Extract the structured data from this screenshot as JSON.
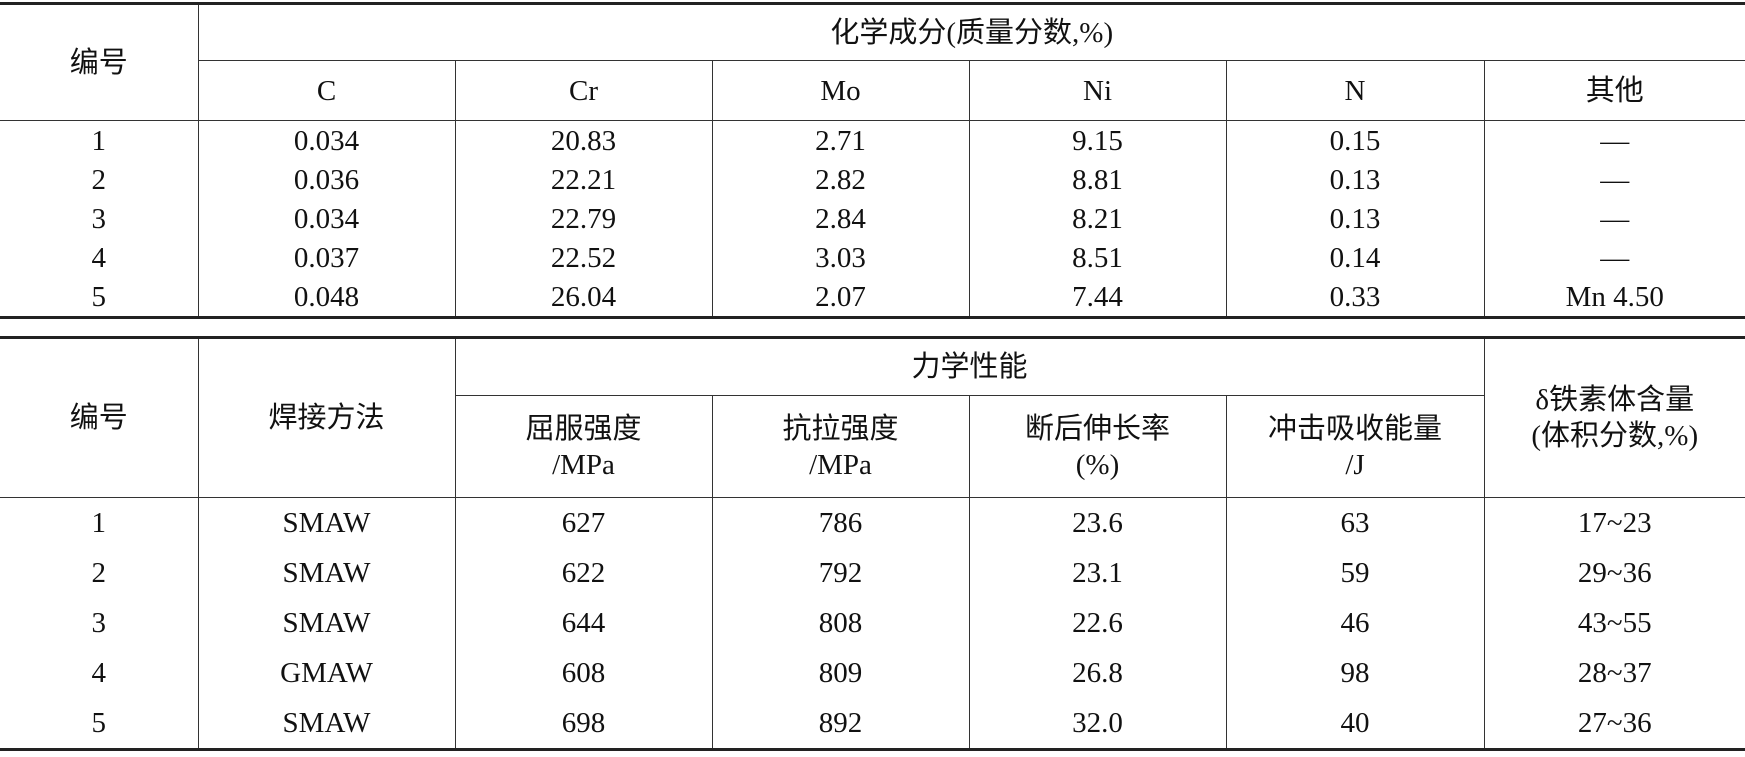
{
  "chemical_table": {
    "id_header": "编号",
    "group_header": "化学成分(质量分数,%)",
    "columns": [
      "C",
      "Cr",
      "Mo",
      "Ni",
      "N",
      "其他"
    ],
    "rows": [
      [
        "1",
        "0.034",
        "20.83",
        "2.71",
        "9.15",
        "0.15",
        "—"
      ],
      [
        "2",
        "0.036",
        "22.21",
        "2.82",
        "8.81",
        "0.13",
        "—"
      ],
      [
        "3",
        "0.034",
        "22.79",
        "2.84",
        "8.21",
        "0.13",
        "—"
      ],
      [
        "4",
        "0.037",
        "22.52",
        "3.03",
        "8.51",
        "0.14",
        "—"
      ],
      [
        "5",
        "0.048",
        "26.04",
        "2.07",
        "7.44",
        "0.33",
        "Mn 4.50"
      ]
    ]
  },
  "mechanical_table": {
    "id_header": "编号",
    "method_header": "焊接方法",
    "group_header": "力学性能",
    "columns": [
      {
        "line1": "屈服强度",
        "line2": "/MPa"
      },
      {
        "line1": "抗拉强度",
        "line2": "/MPa"
      },
      {
        "line1": "断后伸长率",
        "line2": "(%)"
      },
      {
        "line1": "冲击吸收能量",
        "line2": "/J"
      }
    ],
    "ferrite_header": {
      "line1": "δ铁素体含量",
      "line2": "(体积分数,%)"
    },
    "rows": [
      [
        "1",
        "SMAW",
        "627",
        "786",
        "23.6",
        "63",
        "17~23"
      ],
      [
        "2",
        "SMAW",
        "622",
        "792",
        "23.1",
        "59",
        "29~36"
      ],
      [
        "3",
        "SMAW",
        "644",
        "808",
        "22.6",
        "46",
        "43~55"
      ],
      [
        "4",
        "GMAW",
        "608",
        "809",
        "26.8",
        "98",
        "28~37"
      ],
      [
        "5",
        "SMAW",
        "698",
        "892",
        "32.0",
        "40",
        "27~36"
      ]
    ]
  }
}
